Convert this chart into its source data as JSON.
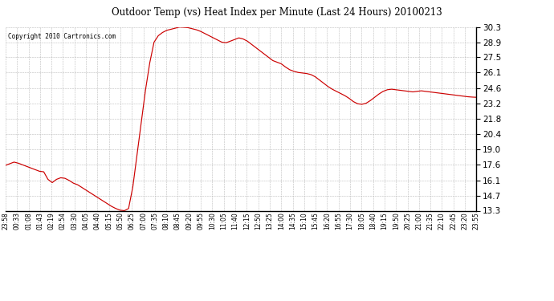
{
  "title": "Outdoor Temp (vs) Heat Index per Minute (Last 24 Hours) 20100213",
  "copyright": "Copyright 2010 Cartronics.com",
  "line_color": "#cc0000",
  "background_color": "#ffffff",
  "plot_bg_color": "#ffffff",
  "grid_color": "#aaaaaa",
  "yticks": [
    13.3,
    14.7,
    16.1,
    17.6,
    19.0,
    20.4,
    21.8,
    23.2,
    24.6,
    26.1,
    27.5,
    28.9,
    30.3
  ],
  "xtick_labels": [
    "23:58",
    "00:33",
    "01:08",
    "01:43",
    "02:19",
    "02:54",
    "03:30",
    "04:05",
    "04:40",
    "05:15",
    "05:50",
    "06:25",
    "07:00",
    "07:35",
    "08:10",
    "08:45",
    "09:20",
    "09:55",
    "10:30",
    "11:05",
    "11:40",
    "12:15",
    "12:50",
    "13:25",
    "14:00",
    "14:35",
    "15:10",
    "15:45",
    "16:20",
    "16:55",
    "17:30",
    "18:05",
    "18:40",
    "19:15",
    "19:50",
    "20:25",
    "21:00",
    "21:35",
    "22:10",
    "22:45",
    "23:20",
    "23:55"
  ],
  "ymin": 13.3,
  "ymax": 30.3,
  "data_y": [
    17.5,
    17.65,
    17.8,
    17.7,
    17.55,
    17.4,
    17.25,
    17.1,
    16.95,
    16.9,
    16.2,
    15.9,
    16.2,
    16.35,
    16.3,
    16.1,
    15.85,
    15.7,
    15.45,
    15.2,
    14.95,
    14.7,
    14.45,
    14.2,
    13.95,
    13.7,
    13.5,
    13.35,
    13.3,
    13.5,
    15.5,
    18.5,
    21.5,
    24.5,
    27.0,
    28.9,
    29.5,
    29.8,
    30.0,
    30.1,
    30.2,
    30.3,
    30.28,
    30.25,
    30.15,
    30.05,
    29.9,
    29.7,
    29.5,
    29.3,
    29.1,
    28.9,
    28.85,
    29.0,
    29.15,
    29.3,
    29.2,
    29.0,
    28.7,
    28.4,
    28.1,
    27.8,
    27.5,
    27.2,
    27.05,
    26.9,
    26.6,
    26.35,
    26.2,
    26.1,
    26.05,
    26.0,
    25.9,
    25.7,
    25.4,
    25.1,
    24.8,
    24.55,
    24.35,
    24.15,
    23.95,
    23.7,
    23.4,
    23.2,
    23.15,
    23.25,
    23.5,
    23.8,
    24.1,
    24.35,
    24.5,
    24.55,
    24.5,
    24.45,
    24.4,
    24.35,
    24.3,
    24.35,
    24.4,
    24.35,
    24.3,
    24.25,
    24.2,
    24.15,
    24.1,
    24.05,
    24.0,
    23.95,
    23.9,
    23.85,
    23.82,
    23.8
  ]
}
